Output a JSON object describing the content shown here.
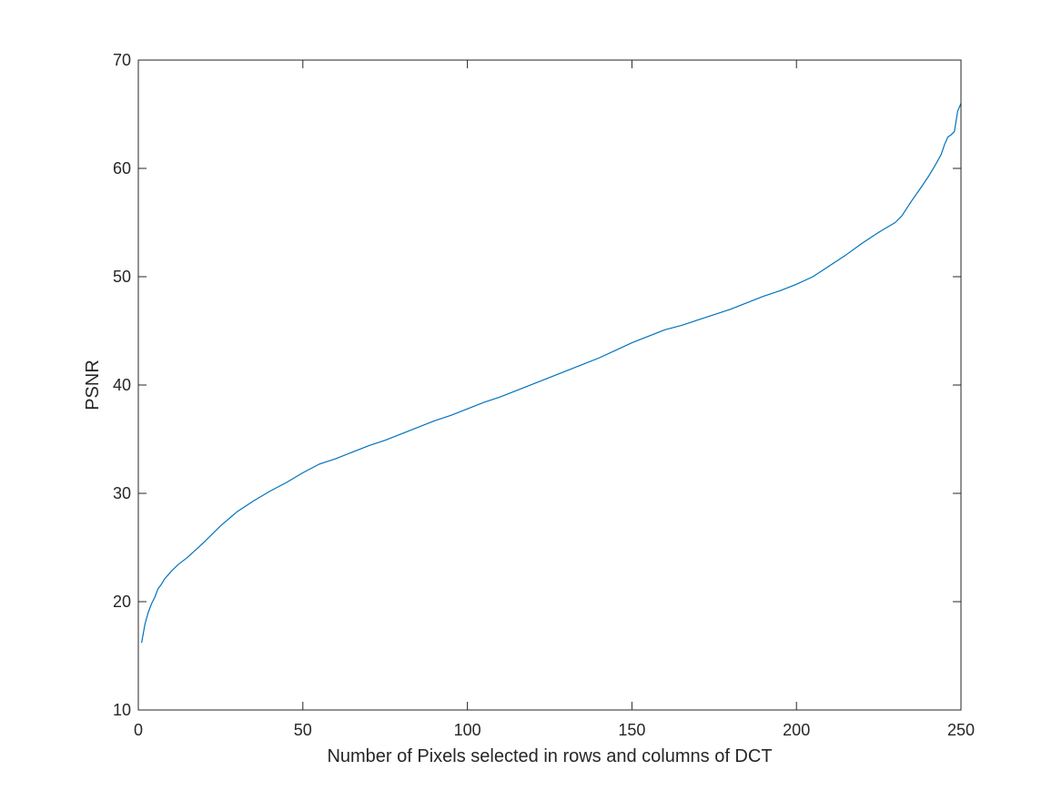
{
  "chart_data": {
    "type": "line",
    "title": "",
    "xlabel": "Number of Pixels selected in rows and columns of DCT",
    "ylabel": "PSNR",
    "xlim": [
      0,
      250
    ],
    "ylim": [
      10,
      70
    ],
    "grid": false,
    "legend": null,
    "xticks": [
      0,
      50,
      100,
      150,
      200,
      250
    ],
    "yticks": [
      10,
      20,
      30,
      40,
      50,
      60,
      70
    ],
    "xtick_labels": [
      "0",
      "50",
      "100",
      "150",
      "200",
      "250"
    ],
    "ytick_labels": [
      "10",
      "20",
      "30",
      "40",
      "50",
      "60",
      "70"
    ],
    "series": [
      {
        "name": "PSNR",
        "color": "#0072BD",
        "x": [
          1,
          2,
          3,
          4,
          5,
          6,
          7,
          8,
          10,
          12,
          15,
          20,
          25,
          30,
          35,
          40,
          45,
          50,
          55,
          60,
          65,
          70,
          75,
          80,
          85,
          90,
          95,
          100,
          105,
          110,
          115,
          120,
          125,
          130,
          135,
          140,
          145,
          150,
          155,
          160,
          165,
          170,
          175,
          180,
          185,
          190,
          195,
          200,
          205,
          210,
          215,
          220,
          225,
          230,
          232,
          235,
          238,
          240,
          242,
          244,
          245,
          246,
          247,
          248,
          249,
          250
        ],
        "y": [
          16.2,
          17.9,
          19.0,
          19.8,
          20.4,
          21.2,
          21.6,
          22.1,
          22.8,
          23.4,
          24.1,
          25.5,
          27.0,
          28.3,
          29.3,
          30.2,
          31.0,
          31.9,
          32.7,
          33.2,
          33.8,
          34.4,
          34.9,
          35.5,
          36.1,
          36.7,
          37.2,
          37.8,
          38.4,
          38.9,
          39.5,
          40.1,
          40.7,
          41.3,
          41.9,
          42.5,
          43.2,
          43.9,
          44.5,
          45.1,
          45.5,
          46.0,
          46.5,
          47.0,
          47.6,
          48.2,
          48.7,
          49.3,
          50.0,
          51.0,
          52.0,
          53.1,
          54.1,
          55.0,
          55.6,
          57.0,
          58.3,
          59.2,
          60.2,
          61.3,
          62.2,
          62.9,
          63.1,
          63.4,
          65.3,
          66.0
        ]
      }
    ]
  }
}
